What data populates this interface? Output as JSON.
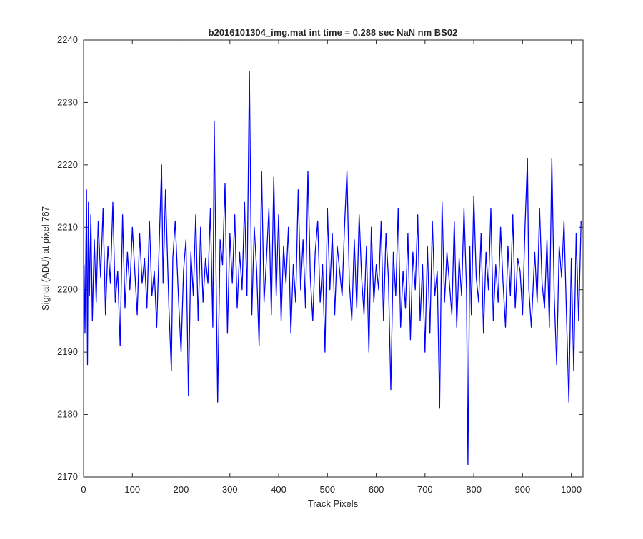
{
  "chart_data": {
    "type": "line",
    "title": "b2016101304_img.mat int time = 0.288 sec  NaN nm BS02",
    "xlabel": "Track Pixels",
    "ylabel": "Signal (ADU) at pixel 767",
    "xlim": [
      0,
      1024
    ],
    "ylim": [
      2170,
      2240
    ],
    "xticks": [
      0,
      100,
      200,
      300,
      400,
      500,
      600,
      700,
      800,
      900,
      1000
    ],
    "yticks": [
      2170,
      2180,
      2190,
      2200,
      2210,
      2220,
      2230,
      2240
    ],
    "grid": false,
    "line_color": "#0000ff",
    "series": [
      {
        "x": [
          1,
          3,
          6,
          8,
          10,
          12,
          15,
          18,
          22,
          26,
          30,
          35,
          40,
          45,
          50,
          55,
          60,
          65,
          70,
          75,
          80,
          85,
          90,
          95,
          100,
          105,
          110,
          115,
          120,
          125,
          130,
          135,
          140,
          145,
          150,
          155,
          160,
          163,
          168,
          175,
          180,
          183,
          188,
          195,
          200,
          205,
          210,
          215,
          220,
          225,
          230,
          235,
          240,
          245,
          250,
          255,
          260,
          265,
          268,
          272,
          275,
          280,
          285,
          290,
          295,
          300,
          305,
          310,
          315,
          320,
          325,
          330,
          335,
          340,
          345,
          350,
          355,
          360,
          365,
          370,
          375,
          380,
          385,
          390,
          395,
          400,
          405,
          410,
          415,
          420,
          425,
          430,
          435,
          440,
          445,
          450,
          455,
          460,
          465,
          470,
          475,
          480,
          485,
          490,
          495,
          500,
          505,
          510,
          515,
          520,
          525,
          530,
          535,
          540,
          545,
          550,
          555,
          560,
          565,
          570,
          575,
          580,
          585,
          590,
          595,
          600,
          605,
          610,
          615,
          620,
          625,
          630,
          635,
          640,
          645,
          650,
          655,
          660,
          665,
          670,
          675,
          680,
          685,
          690,
          695,
          700,
          705,
          710,
          715,
          720,
          725,
          730,
          735,
          740,
          745,
          750,
          755,
          760,
          765,
          770,
          775,
          780,
          785,
          788,
          792,
          795,
          800,
          805,
          810,
          815,
          820,
          825,
          830,
          835,
          840,
          845,
          850,
          855,
          860,
          865,
          870,
          875,
          880,
          885,
          890,
          895,
          900,
          905,
          910,
          913,
          918,
          925,
          930,
          935,
          940,
          945,
          950,
          955,
          960,
          965,
          970,
          975,
          980,
          985,
          990,
          995,
          1000,
          1005,
          1010,
          1015,
          1020
        ],
        "y": [
          2204,
          2193,
          2216,
          2188,
          2214,
          2199,
          2212,
          2195,
          2208,
          2198,
          2211,
          2202,
          2213,
          2196,
          2207,
          2201,
          2214,
          2198,
          2203,
          2191,
          2212,
          2197,
          2206,
          2200,
          2210,
          2203,
          2196,
          2209,
          2201,
          2205,
          2197,
          2211,
          2199,
          2203,
          2194,
          2207,
          2220,
          2201,
          2216,
          2197,
          2187,
          2205,
          2211,
          2198,
          2190,
          2203,
          2208,
          2183,
          2206,
          2199,
          2212,
          2195,
          2210,
          2198,
          2205,
          2201,
          2213,
          2194,
          2227,
          2200,
          2182,
          2208,
          2204,
          2217,
          2193,
          2209,
          2201,
          2212,
          2197,
          2206,
          2200,
          2214,
          2199,
          2235,
          2196,
          2210,
          2203,
          2191,
          2219,
          2198,
          2205,
          2213,
          2196,
          2218,
          2199,
          2212,
          2195,
          2207,
          2201,
          2210,
          2193,
          2204,
          2198,
          2216,
          2200,
          2208,
          2197,
          2219,
          2202,
          2195,
          2206,
          2211,
          2198,
          2204,
          2190,
          2213,
          2200,
          2209,
          2196,
          2207,
          2203,
          2199,
          2210,
          2219,
          2201,
          2195,
          2208,
          2197,
          2212,
          2202,
          2196,
          2207,
          2190,
          2210,
          2198,
          2204,
          2200,
          2211,
          2195,
          2209,
          2202,
          2184,
          2206,
          2199,
          2213,
          2194,
          2203,
          2197,
          2209,
          2192,
          2206,
          2200,
          2212,
          2195,
          2204,
          2190,
          2207,
          2193,
          2211,
          2199,
          2203,
          2181,
          2214,
          2198,
          2206,
          2201,
          2196,
          2211,
          2194,
          2205,
          2199,
          2213,
          2200,
          2172,
          2207,
          2196,
          2215,
          2202,
          2198,
          2209,
          2193,
          2206,
          2200,
          2213,
          2195,
          2204,
          2198,
          2210,
          2201,
          2194,
          2207,
          2199,
          2212,
          2197,
          2205,
          2203,
          2196,
          2210,
          2221,
          2200,
          2194,
          2206,
          2198,
          2213,
          2201,
          2197,
          2208,
          2194,
          2221,
          2199,
          2188,
          2207,
          2202,
          2211,
          2196,
          2182,
          2205,
          2187,
          2209,
          2195,
          2211
        ]
      }
    ]
  }
}
